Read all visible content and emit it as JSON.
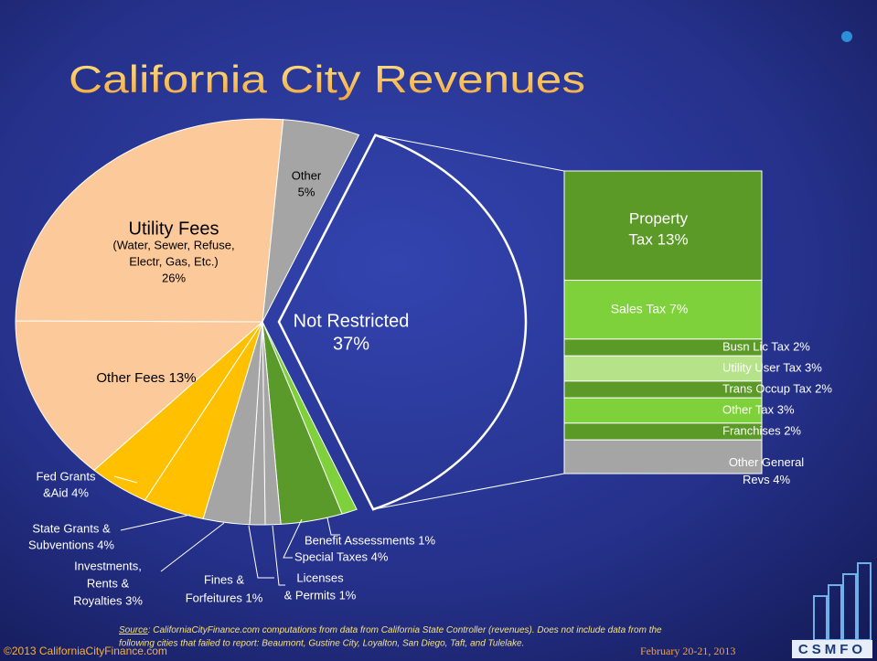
{
  "chart_data": {
    "type": "pie",
    "title": "California City Revenues",
    "values": [
      37,
      1,
      4,
      1,
      1,
      3,
      4,
      4,
      13,
      26,
      5
    ],
    "value_labels": [
      [
        "Not Restricted",
        "37%"
      ],
      [
        "Benefit Assessments 1%"
      ],
      [
        "Special Taxes 4%"
      ],
      [
        "Licenses",
        "& Permits 1%"
      ],
      [
        "Fines &",
        "Forfeitures 1%"
      ],
      [
        "Investments,",
        "Rents &",
        "Royalties 3%"
      ],
      [
        "State Grants &",
        "Subventions 4%"
      ],
      [
        "Fed Grants",
        "&Aid 4%"
      ],
      [
        "Other Fees 13%"
      ],
      [
        "Utility Fees",
        "(Water, Sewer, Refuse,",
        "Electr, Gas, Etc.)",
        "26%"
      ],
      [
        "Other",
        "5%"
      ]
    ],
    "colors": [
      "none",
      "#7fd13b",
      "#5a9a2a",
      "#a5a5a5",
      "#a5a5a5",
      "#a5a5a5",
      "#ffc000",
      "#ffc000",
      "#fbc99a",
      "#fbc99a",
      "#a5a5a5"
    ],
    "breakdown": {
      "values": [
        13,
        7,
        2,
        3,
        2,
        3,
        2,
        4
      ],
      "value_labels": [
        [
          "Property",
          "Tax 13%"
        ],
        [
          "Sales Tax 7%"
        ],
        [
          "Busn Lic Tax 2%"
        ],
        [
          "Utility User Tax 3%"
        ],
        [
          "Trans Occup Tax 2%"
        ],
        [
          "Other Tax 3%"
        ],
        [
          "Franchises 2%"
        ],
        [
          "Other General",
          "Revs 4%"
        ]
      ],
      "colors": [
        "#5b9a26",
        "#7fd13b",
        "#5b9a26",
        "#b6e38a",
        "#5b9a26",
        "#7fd13b",
        "#5b9a26",
        "#a5a5a5"
      ]
    },
    "source_label": "Source",
    "source_text": [
      ": CaliforniaCityFinance.com computations from data from California State Controller (revenues).  Does not include data from the",
      "following cities that failed to report: Beaumont, Gustine City, Loyalton, San Diego, Taft, and Tulelake."
    ],
    "copyright": "©2013 CaliforniaCityFinance.com",
    "date": "February 20-21, 2013",
    "logo": "CSMFO"
  }
}
